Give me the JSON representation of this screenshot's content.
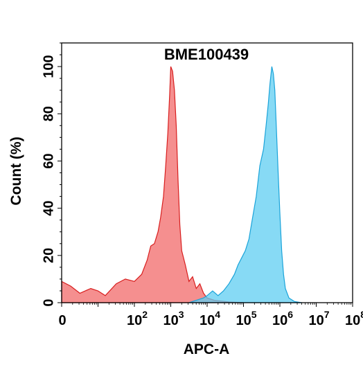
{
  "chart_data": {
    "type": "area",
    "title": "BME100439",
    "xlabel": "APC-A",
    "ylabel": "Count  (%)",
    "x_scale": "biexponential (log)",
    "xlim": [
      "0",
      "10^8"
    ],
    "ylim": [
      0,
      110
    ],
    "x_tick_labels": [
      {
        "base": "0",
        "exp": ""
      },
      {
        "base": "10",
        "exp": "2"
      },
      {
        "base": "10",
        "exp": "3"
      },
      {
        "base": "10",
        "exp": "4"
      },
      {
        "base": "10",
        "exp": "5"
      },
      {
        "base": "10",
        "exp": "6"
      },
      {
        "base": "10",
        "exp": "7"
      },
      {
        "base": "10",
        "exp": "8"
      }
    ],
    "y_ticks": [
      0,
      20,
      40,
      60,
      80,
      100
    ],
    "grid": false,
    "legend": "none",
    "series": [
      {
        "color": "#f26a6a",
        "stroke": "#d81e1e",
        "points": [
          [
            0.0,
            9
          ],
          [
            0.25,
            7
          ],
          [
            0.5,
            4
          ],
          [
            0.8,
            6
          ],
          [
            1.0,
            5
          ],
          [
            1.2,
            3
          ],
          [
            1.5,
            8
          ],
          [
            1.75,
            10
          ],
          [
            2.0,
            9
          ],
          [
            2.2,
            12
          ],
          [
            2.35,
            18
          ],
          [
            2.45,
            24
          ],
          [
            2.55,
            25
          ],
          [
            2.65,
            30
          ],
          [
            2.72,
            36
          ],
          [
            2.8,
            45
          ],
          [
            2.86,
            58
          ],
          [
            2.92,
            72
          ],
          [
            2.97,
            88
          ],
          [
            3.0,
            100
          ],
          [
            3.05,
            98
          ],
          [
            3.1,
            90
          ],
          [
            3.15,
            75
          ],
          [
            3.2,
            52
          ],
          [
            3.25,
            33
          ],
          [
            3.3,
            22
          ],
          [
            3.4,
            16
          ],
          [
            3.5,
            9
          ],
          [
            3.6,
            11
          ],
          [
            3.7,
            6
          ],
          [
            3.8,
            8
          ],
          [
            3.9,
            4
          ],
          [
            4.0,
            2
          ],
          [
            4.2,
            1
          ],
          [
            4.6,
            0.3
          ],
          [
            5.0,
            0
          ]
        ]
      },
      {
        "color": "#5fcdf2",
        "stroke": "#1aa3d9",
        "points": [
          [
            3.5,
            0
          ],
          [
            3.7,
            1
          ],
          [
            3.9,
            2
          ],
          [
            4.0,
            3
          ],
          [
            4.15,
            5
          ],
          [
            4.3,
            3
          ],
          [
            4.45,
            5
          ],
          [
            4.6,
            8
          ],
          [
            4.75,
            12
          ],
          [
            4.85,
            16
          ],
          [
            4.95,
            19
          ],
          [
            5.05,
            22
          ],
          [
            5.15,
            27
          ],
          [
            5.25,
            36
          ],
          [
            5.35,
            45
          ],
          [
            5.45,
            58
          ],
          [
            5.55,
            65
          ],
          [
            5.62,
            75
          ],
          [
            5.68,
            84
          ],
          [
            5.73,
            93
          ],
          [
            5.78,
            100
          ],
          [
            5.82,
            97
          ],
          [
            5.86,
            90
          ],
          [
            5.9,
            75
          ],
          [
            5.95,
            56
          ],
          [
            6.0,
            38
          ],
          [
            6.05,
            22
          ],
          [
            6.1,
            12
          ],
          [
            6.15,
            6
          ],
          [
            6.25,
            2
          ],
          [
            6.4,
            0.5
          ],
          [
            6.6,
            0
          ]
        ]
      }
    ]
  }
}
